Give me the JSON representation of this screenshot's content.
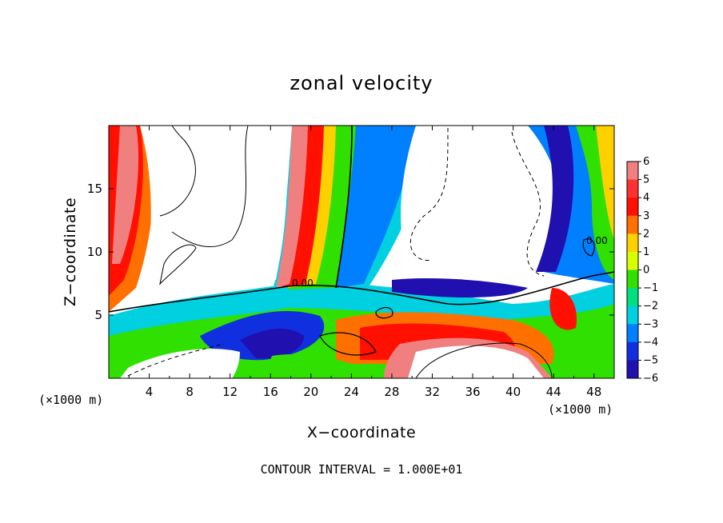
{
  "chart_data": {
    "type": "heatmap",
    "title": "zonal velocity",
    "xlabel": "X−coordinate",
    "ylabel": "Z−coordinate",
    "x_unit_left": "(×1000 m)",
    "x_unit_right": "(×1000 m)",
    "xlim": [
      0,
      50
    ],
    "ylim": [
      0,
      20
    ],
    "xticks": [
      4,
      8,
      12,
      16,
      20,
      24,
      28,
      32,
      36,
      40,
      44,
      48
    ],
    "yticks": [
      5,
      10,
      15
    ],
    "colorbar": {
      "levels": [
        6,
        5,
        4,
        3,
        2,
        1,
        0,
        -1,
        -2,
        -3,
        -4,
        -5,
        -6
      ],
      "labels": [
        "6",
        "5",
        "4",
        "3",
        "2",
        "1",
        "0",
        "−1",
        "−2",
        "−3",
        "−4",
        "−5",
        "−6"
      ],
      "colors": [
        "#f08080",
        "#ff3030",
        "#ff1000",
        "#ff7000",
        "#ffd000",
        "#d8ff00",
        "#30e000",
        "#00e080",
        "#00d0e0",
        "#0080ff",
        "#1030e0",
        "#2010b0",
        "#6a00a0"
      ]
    },
    "contour_labels": [
      "0.00",
      "0.00"
    ],
    "footer": "CONTOUR INTERVAL = 1.000E+01"
  }
}
